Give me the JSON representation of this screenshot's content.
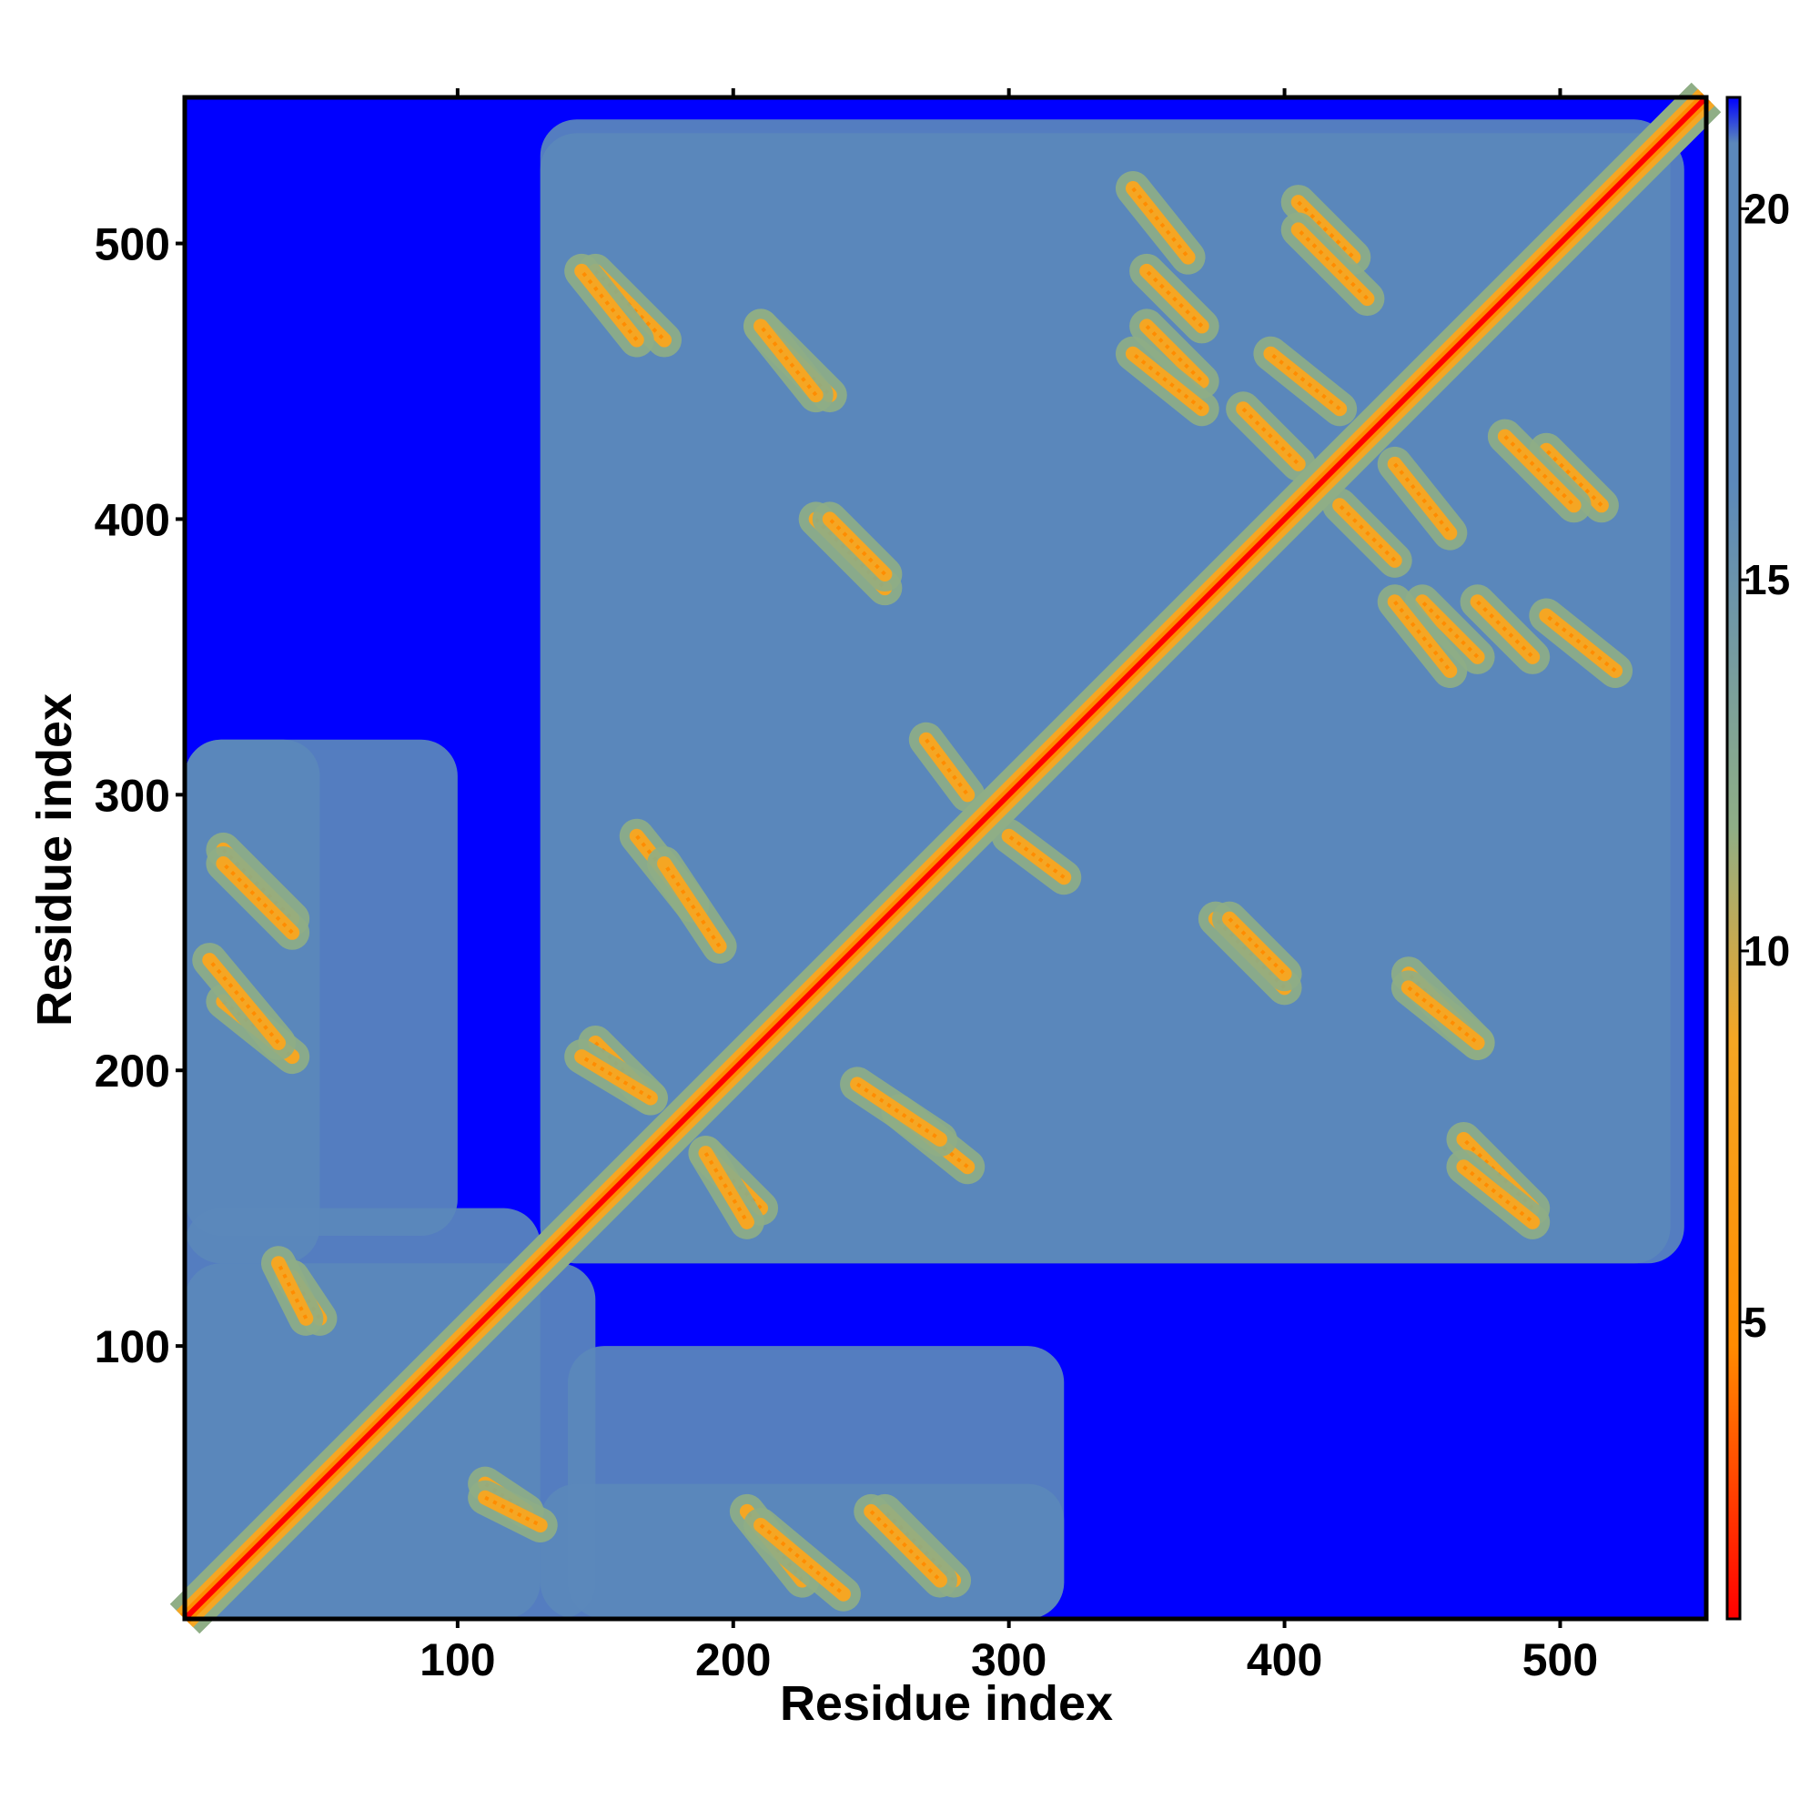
{
  "chart_data": {
    "type": "heatmap",
    "title": "",
    "xlabel": "Residue index",
    "ylabel": "Residue index",
    "x_range": [
      1,
      553
    ],
    "y_range": [
      1,
      553
    ],
    "x_ticks": [
      100,
      200,
      300,
      400,
      500
    ],
    "y_ticks": [
      100,
      200,
      300,
      400,
      500
    ],
    "colorbar": {
      "range": [
        1,
        21.5
      ],
      "ticks": [
        5,
        10,
        15,
        20
      ],
      "colors": {
        "low": "#ff0000",
        "mid_low": "#ff8c00",
        "mid": "#f5a623",
        "mid_high": "#8fae86",
        "high": "#5b88bb",
        "max": "#0000ff"
      }
    },
    "description_of_matrix": "symmetric residue distance map; near-diagonal values ~1-4, secondary-structure contacts 5-12, medium 15-20, background >21",
    "contact_bands": [
      {
        "x": [
          150,
          175
        ],
        "y": [
          490,
          465
        ],
        "value": 8
      },
      {
        "x": [
          210,
          235
        ],
        "y": [
          470,
          445
        ],
        "value": 8
      },
      {
        "x": [
          230,
          255
        ],
        "y": [
          400,
          375
        ],
        "value": 8
      },
      {
        "x": [
          345,
          365
        ],
        "y": [
          520,
          495
        ],
        "value": 8
      },
      {
        "x": [
          350,
          370
        ],
        "y": [
          470,
          450
        ],
        "value": 8
      },
      {
        "x": [
          405,
          425
        ],
        "y": [
          515,
          495
        ],
        "value": 8
      },
      {
        "x": [
          385,
          405
        ],
        "y": [
          440,
          420
        ],
        "value": 9
      },
      {
        "x": [
          440,
          460
        ],
        "y": [
          420,
          395
        ],
        "value": 9
      },
      {
        "x": [
          480,
          505
        ],
        "y": [
          430,
          405
        ],
        "value": 9
      },
      {
        "x": [
          470,
          490
        ],
        "y": [
          370,
          350
        ],
        "value": 9
      },
      {
        "x": [
          440,
          460
        ],
        "y": [
          370,
          345
        ],
        "value": 9
      },
      {
        "x": [
          380,
          400
        ],
        "y": [
          255,
          235
        ],
        "value": 9
      },
      {
        "x": [
          445,
          470
        ],
        "y": [
          230,
          210
        ],
        "value": 9
      },
      {
        "x": [
          465,
          490
        ],
        "y": [
          165,
          145
        ],
        "value": 8
      },
      {
        "x": [
          165,
          185
        ],
        "y": [
          285,
          260
        ],
        "value": 8
      },
      {
        "x": [
          270,
          285
        ],
        "y": [
          320,
          300
        ],
        "value": 9
      },
      {
        "x": [
          150,
          170
        ],
        "y": [
          210,
          190
        ],
        "value": 8
      },
      {
        "x": [
          190,
          205
        ],
        "y": [
          170,
          145
        ],
        "value": 8
      },
      {
        "x": [
          245,
          275
        ],
        "y": [
          195,
          175
        ],
        "value": 8
      },
      {
        "x": [
          15,
          40
        ],
        "y": [
          280,
          255
        ],
        "value": 8
      },
      {
        "x": [
          15,
          40
        ],
        "y": [
          225,
          205
        ],
        "value": 9
      },
      {
        "x": [
          210,
          240
        ],
        "y": [
          35,
          10
        ],
        "value": 8
      },
      {
        "x": [
          250,
          275
        ],
        "y": [
          40,
          15
        ],
        "value": 8
      },
      {
        "x": [
          40,
          50
        ],
        "y": [
          125,
          110
        ],
        "value": 8
      },
      {
        "x": [
          110,
          130
        ],
        "y": [
          45,
          35
        ],
        "value": 8
      }
    ],
    "domains": [
      {
        "x": [
          130,
          540
        ],
        "y": [
          130,
          545
        ],
        "value": 17
      },
      {
        "x": [
          1,
          150
        ],
        "y": [
          1,
          130
        ],
        "value": 17
      },
      {
        "x": [
          140,
          320
        ],
        "y": [
          1,
          100
        ],
        "value": 18
      },
      {
        "x": [
          1,
          50
        ],
        "y": [
          130,
          320
        ],
        "value": 18
      }
    ]
  }
}
